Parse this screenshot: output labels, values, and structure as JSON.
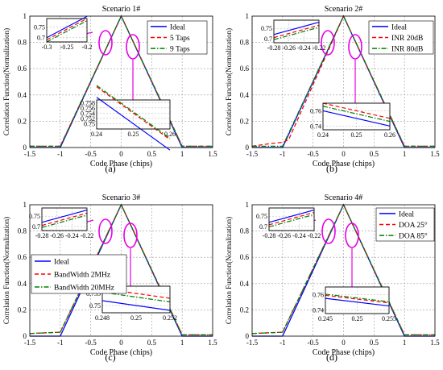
{
  "figure": {
    "panel_letters": [
      "(a)",
      "(b)",
      "(c)",
      "(d)"
    ]
  },
  "chart_data": [
    {
      "type": "line",
      "title": "Scenario 1#",
      "xlabel": "Code Phase (chips)",
      "ylabel": "Correlation Function(Normalization)",
      "xlim": [
        -1.5,
        1.5
      ],
      "ylim": [
        0,
        1
      ],
      "xticks": [
        "-1.5",
        "-1",
        "-0.5",
        "0",
        "0.5",
        "1",
        "1.5"
      ],
      "yticks": [
        "0",
        "0.2",
        "0.4",
        "0.6",
        "0.8",
        "1"
      ],
      "grid": true,
      "legend_position": "top-right",
      "series": [
        {
          "name": "Ideal",
          "color": "#0000ff",
          "dash": "solid",
          "x": [
            -1.5,
            -1,
            0,
            1,
            1.5
          ],
          "y": [
            0,
            0,
            1,
            0,
            0
          ]
        },
        {
          "name": "5 Taps",
          "color": "#ff0000",
          "dash": "dash",
          "x": [
            -1.5,
            -1,
            0,
            1,
            1.5
          ],
          "y": [
            0.01,
            0.01,
            1,
            0.01,
            0.01
          ]
        },
        {
          "name": "9 Taps",
          "color": "#008000",
          "dash": "dashdot",
          "x": [
            -1.5,
            -1,
            0,
            1,
            1.5
          ],
          "y": [
            0.01,
            0.01,
            1,
            0.01,
            0.01
          ]
        }
      ],
      "insets": [
        {
          "xlim": [
            -0.3,
            -0.2
          ],
          "ylim": [
            0.68,
            0.79
          ],
          "xticks": [
            "-0.3",
            "-0.25",
            "-0.2"
          ],
          "yticks": [
            "0.7",
            "0.75"
          ],
          "offsets": [
            0,
            -0.01,
            -0.02
          ]
        },
        {
          "xlim": [
            0.24,
            0.26
          ],
          "ylim": [
            0.748,
            0.759
          ],
          "xticks": [
            "0.24",
            "0.25",
            "0.26"
          ],
          "yticks": [
            "0.75",
            "0.752",
            "0.754",
            "0.756",
            "0.758"
          ],
          "offsets": [
            0,
            0.004,
            0.0045
          ]
        }
      ]
    },
    {
      "type": "line",
      "title": "Scenario 2#",
      "xlabel": "Code Phase (chips)",
      "ylabel": "Correlation Function(Normalization)",
      "xlim": [
        -1.5,
        1.5
      ],
      "ylim": [
        0,
        1
      ],
      "xticks": [
        "-1.5",
        "-1",
        "-0.5",
        "0",
        "0.5",
        "1",
        "1.5"
      ],
      "yticks": [
        "0",
        "0.2",
        "0.4",
        "0.6",
        "0.8",
        "1"
      ],
      "grid": true,
      "legend_position": "top-right",
      "series": [
        {
          "name": "Ideal",
          "color": "#0000ff",
          "dash": "solid",
          "x": [
            -1.5,
            -1,
            0,
            1,
            1.5
          ],
          "y": [
            0,
            0,
            1,
            0,
            0
          ]
        },
        {
          "name": "INR 20dB",
          "color": "#ff0000",
          "dash": "dash",
          "x": [
            -1.5,
            -1.2,
            -1,
            -0.9,
            0,
            1,
            1.5
          ],
          "y": [
            0.01,
            0.03,
            0.04,
            0.06,
            1,
            0.01,
            0.01
          ]
        },
        {
          "name": "INR 80dB",
          "color": "#008000",
          "dash": "dashdot",
          "x": [
            -1.5,
            -1,
            0,
            1,
            1.5
          ],
          "y": [
            0.01,
            0.01,
            1,
            0.01,
            0.01
          ]
        }
      ],
      "insets": [
        {
          "xlim": [
            -0.28,
            -0.22
          ],
          "ylim": [
            0.68,
            0.79
          ],
          "xticks": [
            "-0.28",
            "-0.26",
            "-0.24",
            "-0.22"
          ],
          "yticks": [
            "0.7",
            "0.75"
          ],
          "offsets": [
            0,
            -0.015,
            -0.025
          ]
        },
        {
          "xlim": [
            0.24,
            0.26
          ],
          "ylim": [
            0.735,
            0.77
          ],
          "xticks": [
            "0.24",
            "0.25",
            "0.26"
          ],
          "yticks": [
            "0.74",
            "0.76"
          ],
          "offsets": [
            0,
            0.01,
            0.006
          ]
        }
      ]
    },
    {
      "type": "line",
      "title": "Scenario 3#",
      "xlabel": "Code Phase (chips)",
      "ylabel": "Correlation Function(Normalization)",
      "xlim": [
        -1.5,
        1.5
      ],
      "ylim": [
        0,
        1
      ],
      "xticks": [
        "-1.5",
        "-1",
        "-0.5",
        "0",
        "0.5",
        "1",
        "1.5"
      ],
      "yticks": [
        "0",
        "0.2",
        "0.4",
        "0.6",
        "0.8",
        "1"
      ],
      "grid": true,
      "legend_position": "center-left",
      "series": [
        {
          "name": "Ideal",
          "color": "#0000ff",
          "dash": "solid",
          "x": [
            -1.5,
            -1,
            0,
            1,
            1.5
          ],
          "y": [
            0,
            0,
            1,
            0,
            0
          ]
        },
        {
          "name": "BandWidth 2MHz",
          "color": "#ff0000",
          "dash": "dash",
          "x": [
            -1.5,
            -1,
            0,
            1,
            1.5
          ],
          "y": [
            0.02,
            0.03,
            1,
            0.01,
            0.01
          ]
        },
        {
          "name": "BandWidth 20MHz",
          "color": "#008000",
          "dash": "dashdot",
          "x": [
            -1.5,
            -1,
            0,
            1,
            1.5
          ],
          "y": [
            0.02,
            0.03,
            1,
            0.01,
            0.01
          ]
        }
      ],
      "insets": [
        {
          "xlim": [
            -0.28,
            -0.22
          ],
          "ylim": [
            0.68,
            0.79
          ],
          "xticks": [
            "-0.28",
            "-0.26",
            "-0.24",
            "-0.22"
          ],
          "yticks": [
            "0.7",
            "0.75"
          ],
          "offsets": [
            0,
            -0.015,
            -0.025
          ]
        },
        {
          "xlim": [
            0.248,
            0.252
          ],
          "ylim": [
            0.747,
            0.758
          ],
          "xticks": [
            "0.248",
            "0.25",
            "0.252"
          ],
          "yticks": [
            "0.75",
            "0.755"
          ],
          "offsets": [
            0,
            0.005,
            0.0035
          ]
        }
      ]
    },
    {
      "type": "line",
      "title": "Scenario 4#",
      "xlabel": "Code Phase (chips)",
      "ylabel": "Correlation Function(Normalization)",
      "xlim": [
        -1.5,
        1.5
      ],
      "ylim": [
        0,
        1
      ],
      "xticks": [
        "-1.5",
        "-1",
        "-0.5",
        "0",
        "0.5",
        "1",
        "1.5"
      ],
      "yticks": [
        "0",
        "0.2",
        "0.4",
        "0.6",
        "0.8",
        "1"
      ],
      "grid": true,
      "legend_position": "top-right",
      "series": [
        {
          "name": "Ideal",
          "color": "#0000ff",
          "dash": "solid",
          "x": [
            -1.5,
            -1,
            0,
            1,
            1.5
          ],
          "y": [
            0,
            0,
            1,
            0,
            0
          ]
        },
        {
          "name": "DOA 25°",
          "color": "#ff0000",
          "dash": "dash",
          "x": [
            -1.5,
            -1,
            0,
            1,
            1.5
          ],
          "y": [
            0.02,
            0.03,
            1,
            0.01,
            0.01
          ]
        },
        {
          "name": "DOA 85°",
          "color": "#008000",
          "dash": "dashdot",
          "x": [
            -1.5,
            -1,
            0,
            1,
            1.5
          ],
          "y": [
            0.02,
            0.03,
            1,
            0.01,
            0.01
          ]
        }
      ],
      "insets": [
        {
          "xlim": [
            -0.28,
            -0.22
          ],
          "ylim": [
            0.68,
            0.79
          ],
          "xticks": [
            "-0.28",
            "-0.26",
            "-0.24",
            "-0.22"
          ],
          "yticks": [
            "0.7",
            "0.75"
          ],
          "offsets": [
            0,
            -0.012,
            -0.022
          ]
        },
        {
          "xlim": [
            0.245,
            0.255
          ],
          "ylim": [
            0.735,
            0.77
          ],
          "xticks": [
            "0.245",
            "0.25",
            "0.255"
          ],
          "yticks": [
            "0.74",
            "0.76"
          ],
          "offsets": [
            0,
            0.004,
            0.0055
          ]
        }
      ]
    }
  ]
}
